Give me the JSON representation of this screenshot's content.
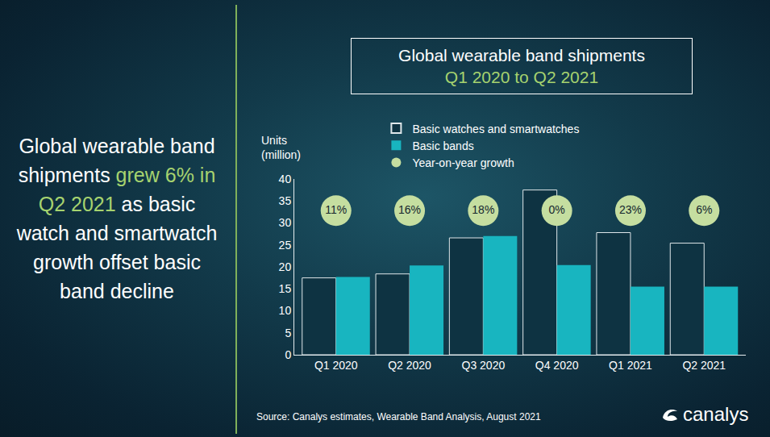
{
  "headline": {
    "before": "Global wearable band shipments",
    "highlight": "grew 6% in Q2 2021",
    "after": "as basic watch and smartwatch growth offset basic band decline"
  },
  "source": "Source: Canalys estimates, Wearable Band Analysis, August 2021",
  "logo": "canalys",
  "chart_data": {
    "type": "bar",
    "title": "Global wearable band shipments",
    "subtitle": "Q1 2020 to Q2 2021",
    "y_label": "Units (million)",
    "categories": [
      "Q1 2020",
      "Q2 2020",
      "Q3 2020",
      "Q4 2020",
      "Q1 2021",
      "Q2 2021"
    ],
    "series": [
      {
        "name": "Basic watches and smartwatches",
        "color": "#0e3342",
        "values": [
          17.5,
          18.4,
          26.6,
          37.5,
          27.8,
          25.4
        ]
      },
      {
        "name": "Basic bands",
        "color": "#18b5c0",
        "values": [
          17.7,
          20.3,
          27.0,
          20.4,
          15.5,
          15.5
        ]
      }
    ],
    "growth": {
      "name": "Year-on-year growth",
      "color": "#c5dea0",
      "marker": "circle",
      "values": [
        11,
        16,
        18,
        0,
        23,
        6
      ],
      "value_labels": [
        "11%",
        "16%",
        "18%",
        "0%",
        "23%",
        "6%"
      ]
    },
    "ylim": [
      0,
      40
    ],
    "yticks": [
      0,
      5,
      10,
      15,
      20,
      25,
      30,
      35,
      40
    ],
    "grid": false,
    "legend": "top left"
  }
}
